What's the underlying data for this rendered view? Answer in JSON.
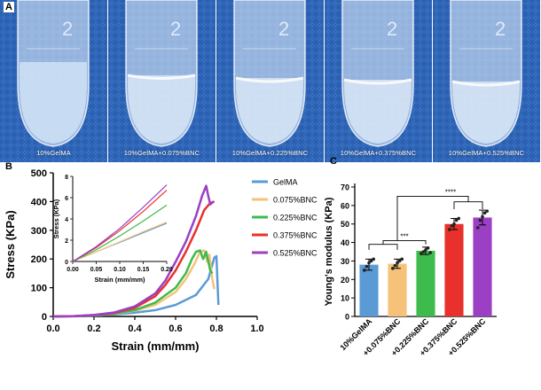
{
  "panels": {
    "A": "A",
    "B": "B",
    "C": "C"
  },
  "photos": [
    {
      "label": "10%GelMA",
      "tube_number": "2",
      "has_layer": false
    },
    {
      "label": "10%GelMA+0.075%BNC",
      "tube_number": "2",
      "has_layer": true
    },
    {
      "label": "10%GelMA+0.225%BNC",
      "tube_number": "2",
      "has_layer": true
    },
    {
      "label": "10%GelMA+0.375%BNC",
      "tube_number": "2",
      "has_layer": true
    },
    {
      "label": "10%GelMA+0.525%BNC",
      "tube_number": "2",
      "has_layer": true
    }
  ],
  "colors": {
    "GelMA": "#5b9bd5",
    "0.075%BNC": "#f6c27a",
    "0.225%BNC": "#3dbb4c",
    "0.375%BNC": "#e8302c",
    "0.525%BNC": "#9b3fc4"
  },
  "chart_data": [
    {
      "type": "line",
      "xlabel": "Strain (mm/mm)",
      "ylabel": "Stress (KPa)",
      "xlim": [
        0,
        1.0
      ],
      "ylim": [
        0,
        500
      ],
      "xticks": [
        "0.0",
        "0.2",
        "0.4",
        "0.6",
        "0.8",
        "1.0"
      ],
      "yticks": [
        "0",
        "100",
        "200",
        "300",
        "400",
        "500"
      ],
      "legend": [
        "GelMA",
        "0.075%BNC",
        "0.225%BNC",
        "0.375%BNC",
        "0.525%BNC"
      ],
      "series": [
        {
          "name": "GelMA",
          "points": [
            [
              0,
              0
            ],
            [
              0.1,
              1
            ],
            [
              0.2,
              3
            ],
            [
              0.3,
              7
            ],
            [
              0.4,
              13
            ],
            [
              0.5,
              22
            ],
            [
              0.6,
              40
            ],
            [
              0.7,
              75
            ],
            [
              0.76,
              130
            ],
            [
              0.79,
              205
            ],
            [
              0.8,
              210
            ],
            [
              0.805,
              120
            ],
            [
              0.81,
              40
            ]
          ]
        },
        {
          "name": "0.075%BNC",
          "points": [
            [
              0,
              0
            ],
            [
              0.1,
              1
            ],
            [
              0.2,
              4
            ],
            [
              0.3,
              9
            ],
            [
              0.4,
              20
            ],
            [
              0.5,
              40
            ],
            [
              0.6,
              85
            ],
            [
              0.65,
              130
            ],
            [
              0.69,
              180
            ],
            [
              0.72,
              225
            ],
            [
              0.74,
              230
            ],
            [
              0.755,
              190
            ],
            [
              0.765,
              215
            ],
            [
              0.78,
              130
            ],
            [
              0.79,
              95
            ]
          ]
        },
        {
          "name": "0.225%BNC",
          "points": [
            [
              0,
              0
            ],
            [
              0.1,
              1
            ],
            [
              0.2,
              4
            ],
            [
              0.3,
              10
            ],
            [
              0.4,
              22
            ],
            [
              0.5,
              48
            ],
            [
              0.6,
              100
            ],
            [
              0.65,
              150
            ],
            [
              0.68,
              200
            ],
            [
              0.7,
              225
            ],
            [
              0.72,
              230
            ],
            [
              0.735,
              200
            ],
            [
              0.75,
              225
            ],
            [
              0.77,
              160
            ],
            [
              0.78,
              150
            ]
          ]
        },
        {
          "name": "0.375%BNC",
          "points": [
            [
              0,
              0
            ],
            [
              0.1,
              1
            ],
            [
              0.2,
              5
            ],
            [
              0.3,
              12
            ],
            [
              0.4,
              30
            ],
            [
              0.5,
              70
            ],
            [
              0.55,
              110
            ],
            [
              0.6,
              160
            ],
            [
              0.65,
              225
            ],
            [
              0.7,
              300
            ],
            [
              0.74,
              370
            ],
            [
              0.77,
              395
            ],
            [
              0.79,
              400
            ]
          ]
        },
        {
          "name": "0.525%BNC",
          "points": [
            [
              0,
              0
            ],
            [
              0.1,
              1
            ],
            [
              0.2,
              5
            ],
            [
              0.3,
              14
            ],
            [
              0.4,
              35
            ],
            [
              0.5,
              80
            ],
            [
              0.55,
              125
            ],
            [
              0.6,
              190
            ],
            [
              0.65,
              260
            ],
            [
              0.7,
              350
            ],
            [
              0.73,
              420
            ],
            [
              0.75,
              455
            ],
            [
              0.76,
              420
            ],
            [
              0.77,
              390
            ],
            [
              0.785,
              400
            ]
          ]
        }
      ]
    },
    {
      "type": "line",
      "inset": true,
      "xlabel": "Strain (mm/mm)",
      "ylabel": "Stress (KPa)",
      "xlim": [
        0,
        0.2
      ],
      "ylim": [
        0,
        8
      ],
      "xticks": [
        "0.00",
        "0.05",
        "0.10",
        "0.15",
        "0.20"
      ],
      "yticks": [
        "0",
        "2",
        "4",
        "6",
        "8"
      ],
      "series": [
        {
          "name": "GelMA",
          "points": [
            [
              0,
              0
            ],
            [
              0.05,
              0.9
            ],
            [
              0.1,
              1.8
            ],
            [
              0.15,
              2.7
            ],
            [
              0.2,
              3.6
            ]
          ]
        },
        {
          "name": "0.075%BNC",
          "points": [
            [
              0,
              0
            ],
            [
              0.05,
              0.9
            ],
            [
              0.1,
              1.85
            ],
            [
              0.15,
              2.8
            ],
            [
              0.2,
              3.7
            ]
          ]
        },
        {
          "name": "0.225%BNC",
          "points": [
            [
              0,
              0
            ],
            [
              0.05,
              1.1
            ],
            [
              0.1,
              2.4
            ],
            [
              0.15,
              3.8
            ],
            [
              0.2,
              5.3
            ]
          ]
        },
        {
          "name": "0.375%BNC",
          "points": [
            [
              0,
              0
            ],
            [
              0.05,
              1.3
            ],
            [
              0.1,
              2.9
            ],
            [
              0.15,
              4.7
            ],
            [
              0.2,
              6.7
            ]
          ]
        },
        {
          "name": "0.525%BNC",
          "points": [
            [
              0,
              0
            ],
            [
              0.05,
              1.4
            ],
            [
              0.1,
              3.1
            ],
            [
              0.15,
              5.1
            ],
            [
              0.2,
              7.2
            ]
          ]
        }
      ]
    },
    {
      "type": "bar",
      "ylabel": "Young's modulus (KPa)",
      "ylim": [
        0,
        70
      ],
      "yticks": [
        "0",
        "10",
        "20",
        "30",
        "40",
        "50",
        "60",
        "70"
      ],
      "categories": [
        "10%GelMA",
        "+0.075%BNC",
        "+0.225%BNC",
        "+0.375%BNC",
        "+0.525%BNC"
      ],
      "values": [
        28,
        28.5,
        35.5,
        50,
        53.5
      ],
      "errors": [
        3,
        2.5,
        2,
        3,
        4
      ],
      "scatter": [
        [
          25,
          27,
          29,
          30,
          31
        ],
        [
          26,
          27.5,
          29,
          30,
          31
        ],
        [
          34,
          35,
          36,
          37,
          34.5
        ],
        [
          47,
          49,
          50,
          52,
          53
        ],
        [
          48,
          52,
          54,
          56,
          57
        ]
      ],
      "significance": [
        {
          "label": "***",
          "groups": [
            [
              0,
              1
            ],
            2
          ]
        },
        {
          "label": "****",
          "groups": [
            [
              0,
              1,
              2
            ],
            [
              3,
              4
            ]
          ]
        }
      ]
    }
  ]
}
